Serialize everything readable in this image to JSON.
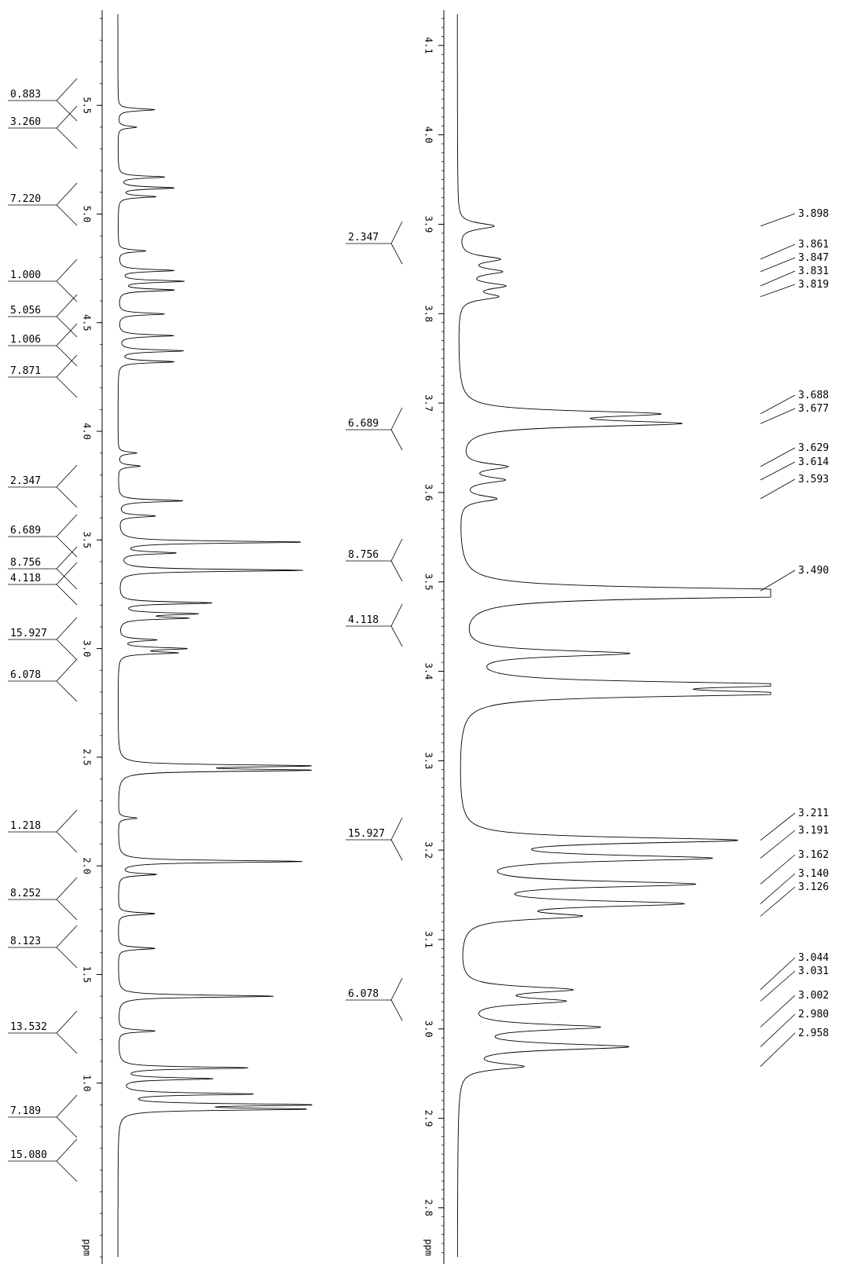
{
  "chart_data": [
    {
      "type": "line",
      "name": "left-spectrum",
      "xlabel": "ppm",
      "x_range": [
        5.92,
        0.2
      ],
      "tick_labels": [
        "5.5",
        "5.0",
        "4.5",
        "4.0",
        "3.5",
        "3.0",
        "2.5",
        "2.0",
        "1.5",
        "1.0"
      ],
      "integrals": [
        "0.883",
        "3.260",
        "7.220",
        "1.000",
        "5.056",
        "1.006",
        "7.871",
        "2.347",
        "6.689",
        "8.756",
        "4.118",
        "15.927",
        "6.078",
        "1.218",
        "8.252",
        "8.123",
        "13.532",
        "7.189",
        "15.080"
      ],
      "peaks": [
        {
          "ppm": 5.48,
          "h": 0.2
        },
        {
          "ppm": 5.4,
          "h": 0.1
        },
        {
          "ppm": 5.17,
          "h": 0.25
        },
        {
          "ppm": 5.12,
          "h": 0.3
        },
        {
          "ppm": 5.08,
          "h": 0.2
        },
        {
          "ppm": 4.83,
          "h": 0.15
        },
        {
          "ppm": 4.74,
          "h": 0.3
        },
        {
          "ppm": 4.69,
          "h": 0.35
        },
        {
          "ppm": 4.65,
          "h": 0.3
        },
        {
          "ppm": 4.54,
          "h": 0.25
        },
        {
          "ppm": 4.44,
          "h": 0.3
        },
        {
          "ppm": 4.37,
          "h": 0.35
        },
        {
          "ppm": 4.32,
          "h": 0.3
        },
        {
          "ppm": 3.9,
          "h": 0.1
        },
        {
          "ppm": 3.84,
          "h": 0.12
        },
        {
          "ppm": 3.68,
          "h": 0.35
        },
        {
          "ppm": 3.61,
          "h": 0.2
        },
        {
          "ppm": 3.49,
          "h": 1.0
        },
        {
          "ppm": 3.44,
          "h": 0.3
        },
        {
          "ppm": 3.36,
          "h": 1.0
        },
        {
          "ppm": 3.21,
          "h": 0.5
        },
        {
          "ppm": 3.16,
          "h": 0.4
        },
        {
          "ppm": 3.14,
          "h": 0.35
        },
        {
          "ppm": 3.04,
          "h": 0.2
        },
        {
          "ppm": 3.0,
          "h": 0.35
        },
        {
          "ppm": 2.98,
          "h": 0.3
        },
        {
          "ppm": 2.46,
          "h": 1.0
        },
        {
          "ppm": 2.44,
          "h": 1.0
        },
        {
          "ppm": 2.22,
          "h": 0.1
        },
        {
          "ppm": 2.02,
          "h": 1.0
        },
        {
          "ppm": 1.96,
          "h": 0.2
        },
        {
          "ppm": 1.78,
          "h": 0.2
        },
        {
          "ppm": 1.62,
          "h": 0.2
        },
        {
          "ppm": 1.4,
          "h": 0.85
        },
        {
          "ppm": 1.24,
          "h": 0.2
        },
        {
          "ppm": 1.07,
          "h": 0.7
        },
        {
          "ppm": 1.02,
          "h": 0.5
        },
        {
          "ppm": 0.95,
          "h": 0.72
        },
        {
          "ppm": 0.9,
          "h": 1.0
        },
        {
          "ppm": 0.88,
          "h": 0.95
        }
      ]
    },
    {
      "type": "line",
      "name": "right-spectrum",
      "xlabel": "ppm",
      "x_range": [
        4.135,
        2.745
      ],
      "tick_labels": [
        "4.1",
        "4.0",
        "3.9",
        "3.8",
        "3.7",
        "3.6",
        "3.5",
        "3.4",
        "3.3",
        "3.2",
        "3.1",
        "3.0",
        "2.9",
        "2.8"
      ],
      "integrals": [
        "2.347",
        "6.689",
        "8.756",
        "4.118",
        "15.927",
        "6.078"
      ],
      "peak_labels": [
        "3.898",
        "3.861",
        "3.847",
        "3.831",
        "3.819",
        "3.688",
        "3.677",
        "3.629",
        "3.614",
        "3.593",
        "3.490",
        "3.211",
        "3.191",
        "3.162",
        "3.140",
        "3.126",
        "3.044",
        "3.031",
        "3.002",
        "2.980",
        "2.958"
      ],
      "peaks": [
        {
          "ppm": 3.898,
          "h": 0.12
        },
        {
          "ppm": 3.861,
          "h": 0.13
        },
        {
          "ppm": 3.847,
          "h": 0.13
        },
        {
          "ppm": 3.831,
          "h": 0.14
        },
        {
          "ppm": 3.819,
          "h": 0.12
        },
        {
          "ppm": 3.688,
          "h": 0.6
        },
        {
          "ppm": 3.677,
          "h": 0.68
        },
        {
          "ppm": 3.629,
          "h": 0.15
        },
        {
          "ppm": 3.614,
          "h": 0.14
        },
        {
          "ppm": 3.593,
          "h": 0.12
        },
        {
          "ppm": 3.49,
          "h": 1.0
        },
        {
          "ppm": 3.485,
          "h": 1.0
        },
        {
          "ppm": 3.42,
          "h": 0.55
        },
        {
          "ppm": 3.385,
          "h": 1.0
        },
        {
          "ppm": 3.375,
          "h": 1.0
        },
        {
          "ppm": 3.211,
          "h": 0.9
        },
        {
          "ppm": 3.191,
          "h": 0.8
        },
        {
          "ppm": 3.162,
          "h": 0.75
        },
        {
          "ppm": 3.14,
          "h": 0.7
        },
        {
          "ppm": 3.126,
          "h": 0.35
        },
        {
          "ppm": 3.044,
          "h": 0.35
        },
        {
          "ppm": 3.031,
          "h": 0.32
        },
        {
          "ppm": 3.002,
          "h": 0.45
        },
        {
          "ppm": 2.98,
          "h": 0.55
        },
        {
          "ppm": 2.958,
          "h": 0.2
        }
      ]
    }
  ]
}
